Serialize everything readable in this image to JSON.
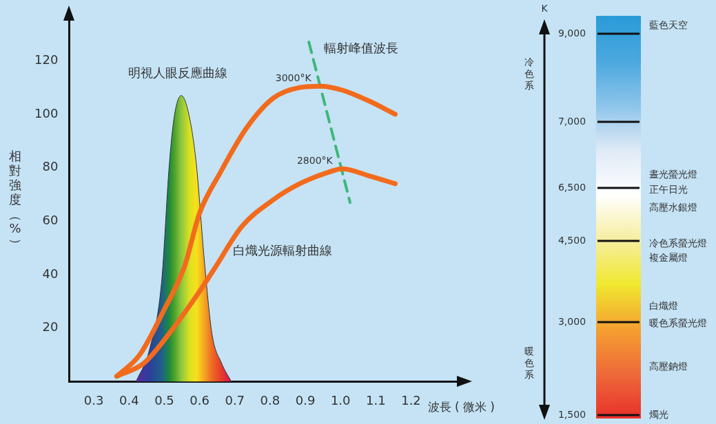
{
  "chart_data": [
    {
      "type": "line",
      "xlabel": "波長 ( 微米 )",
      "ylabel": "相對強度（%）",
      "xlim": [
        0.23,
        1.33
      ],
      "ylim": [
        0,
        135
      ],
      "xticks": [
        0.3,
        0.4,
        0.5,
        0.6,
        0.7,
        0.8,
        0.9,
        {
          "value": 1,
          "label": "1.0"
        },
        1.1,
        1.2
      ],
      "yticks": [
        20,
        40,
        60,
        80,
        100,
        120
      ],
      "marker": "none",
      "grid": false,
      "annotations": [
        "白熾光源輻射曲線"
      ],
      "series": [
        {
          "type": "area",
          "name": "明視人眼反應曲線",
          "color": "#8cc63f",
          "x": [
            0.42,
            0.458,
            0.492,
            0.514,
            0.528,
            0.548,
            0.571,
            0.591,
            0.613,
            0.635,
            0.662,
            0.69
          ],
          "values": [
            0,
            12,
            37,
            81,
            99,
            107,
            99,
            81,
            46,
            18,
            7,
            0
          ],
          "colors": [
            "#5a2aa0",
            "#2c3f9c",
            "#1f5f8a",
            "#1e8a3c",
            "#4aa02a",
            "#8cc63f",
            "#d9e021",
            "#f7e11c",
            "#f5a623",
            "#ee6b25",
            "#e53a2a",
            "#d4145a"
          ]
        },
        {
          "name": "3000°K",
          "color": "#f26b1d",
          "x": [
            0.365,
            0.43,
            0.5,
            0.557,
            0.6,
            0.658,
            0.734,
            0.809,
            0.884,
            0.944,
            1.005,
            1.08,
            1.155
          ],
          "values": [
            2,
            10,
            27,
            43,
            63,
            78,
            95,
            106,
            110,
            110.5,
            109,
            105,
            100
          ]
        },
        {
          "name": "2800°K",
          "color": "#f26b1d",
          "x": [
            0.365,
            0.443,
            0.514,
            0.591,
            0.641,
            0.72,
            0.809,
            0.884,
            0.959,
            1.005,
            1.08,
            1.155
          ],
          "values": [
            2,
            7,
            18,
            32,
            42,
            58,
            68,
            74,
            78,
            79.6,
            77,
            74
          ]
        },
        {
          "name": "輻射峰值波長",
          "color": "#3cb878",
          "line_style": "dashed",
          "x": [
            0.91,
            1.027
          ],
          "values": [
            127,
            67
          ]
        }
      ]
    },
    {
      "type": "other",
      "title": "K",
      "categories": [
        "9,000",
        "7,000",
        "6,500",
        "4,500",
        "3,000",
        "1,500"
      ],
      "annotations": [
        "冷色系",
        "暖色系",
        "藍色天空",
        "晝光螢光燈",
        "正午日光",
        "高壓水銀燈",
        "冷色系螢光燈",
        "複金屬燈",
        "白熾燈",
        "暖色系螢光燈",
        "高壓鈉燈",
        "燭光"
      ],
      "colors": [
        "#2a9bd8",
        "#4aa8de",
        "#8cc4ea",
        "#dfeaf6",
        "#ffffff",
        "#f6eea0",
        "#f0e830",
        "#f5a030",
        "#ee6a3a",
        "#e8302a"
      ]
    }
  ]
}
